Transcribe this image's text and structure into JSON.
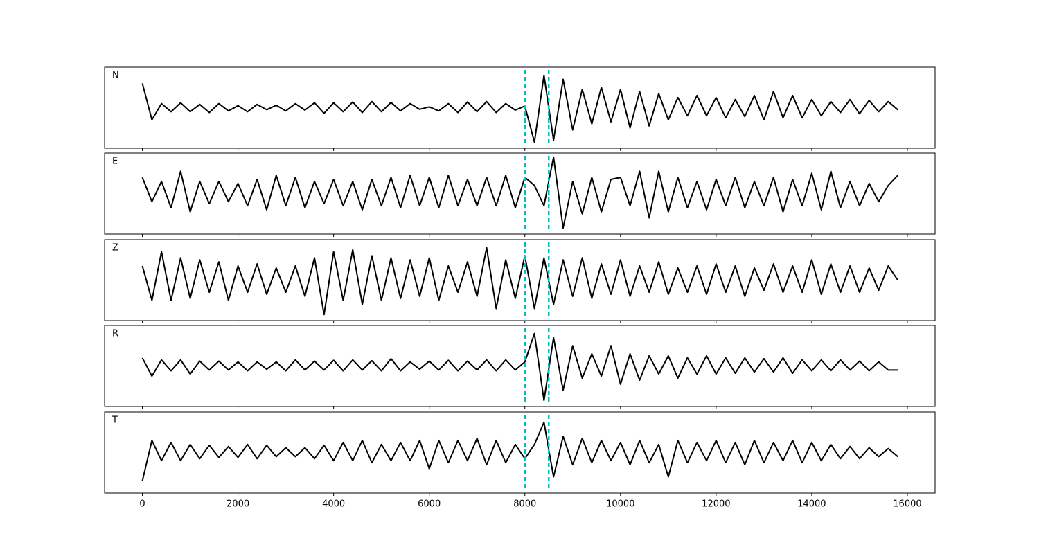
{
  "chart_data": [
    {
      "type": "line",
      "title": "N",
      "color": "#000000",
      "xlim": [
        -790,
        16580
      ],
      "ylim": [
        -1,
        1
      ],
      "vlines": [
        8000,
        8500
      ],
      "vline_color": "#00bfbf",
      "x": [
        0,
        200,
        400,
        600,
        800,
        1000,
        1200,
        1400,
        1600,
        1800,
        2000,
        2200,
        2400,
        2600,
        2800,
        3000,
        3200,
        3400,
        3600,
        3800,
        4000,
        4200,
        4400,
        4600,
        4800,
        5000,
        5200,
        5400,
        5600,
        5800,
        6000,
        6200,
        6400,
        6600,
        6800,
        7000,
        7200,
        7400,
        7600,
        7800,
        8000,
        8200,
        8400,
        8600,
        8800,
        9000,
        9200,
        9400,
        9600,
        9800,
        10000,
        10200,
        10400,
        10600,
        10800,
        11000,
        11200,
        11400,
        11600,
        11800,
        12000,
        12200,
        12400,
        12600,
        12800,
        13000,
        13200,
        13400,
        13600,
        13800,
        14000,
        14200,
        14400,
        14600,
        14800,
        15000,
        15200,
        15400,
        15600,
        15800
      ],
      "values": [
        0.6,
        -0.3,
        0.1,
        -0.1,
        0.12,
        -0.1,
        0.08,
        -0.12,
        0.1,
        -0.08,
        0.05,
        -0.1,
        0.08,
        -0.05,
        0.06,
        -0.08,
        0.1,
        -0.06,
        0.12,
        -0.14,
        0.12,
        -0.1,
        0.14,
        -0.12,
        0.15,
        -0.1,
        0.13,
        -0.08,
        0.1,
        -0.04,
        0.02,
        -0.08,
        0.1,
        -0.12,
        0.14,
        -0.1,
        0.15,
        -0.12,
        0.1,
        -0.06,
        0.04,
        -0.85,
        0.8,
        -0.8,
        0.7,
        -0.55,
        0.45,
        -0.4,
        0.5,
        -0.35,
        0.45,
        -0.5,
        0.4,
        -0.45,
        0.35,
        -0.3,
        0.25,
        -0.2,
        0.3,
        -0.2,
        0.25,
        -0.25,
        0.2,
        -0.22,
        0.3,
        -0.3,
        0.4,
        -0.25,
        0.3,
        -0.25,
        0.2,
        -0.2,
        0.15,
        -0.12,
        0.2,
        -0.15,
        0.18,
        -0.1,
        0.15,
        -0.05
      ]
    },
    {
      "type": "line",
      "title": "E",
      "color": "#000000",
      "xlim": [
        -790,
        16580
      ],
      "ylim": [
        -1,
        1
      ],
      "vlines": [
        8000,
        8500
      ],
      "vline_color": "#00bfbf",
      "x": [
        0,
        200,
        400,
        600,
        800,
        1000,
        1200,
        1400,
        1600,
        1800,
        2000,
        2200,
        2400,
        2600,
        2800,
        3000,
        3200,
        3400,
        3600,
        3800,
        4000,
        4200,
        4400,
        4600,
        4800,
        5000,
        5200,
        5400,
        5600,
        5800,
        6000,
        6200,
        6400,
        6600,
        6800,
        7000,
        7200,
        7400,
        7600,
        7800,
        8000,
        8200,
        8400,
        8600,
        8800,
        9000,
        9200,
        9400,
        9600,
        9800,
        10000,
        10200,
        10400,
        10600,
        10800,
        11000,
        11200,
        11400,
        11600,
        11800,
        12000,
        12200,
        12400,
        12600,
        12800,
        13000,
        13200,
        13400,
        13600,
        13800,
        14000,
        14200,
        14400,
        14600,
        14800,
        15000,
        15200,
        15400,
        15600,
        15800
      ],
      "values": [
        0.4,
        -0.2,
        0.3,
        -0.35,
        0.55,
        -0.45,
        0.3,
        -0.25,
        0.3,
        -0.2,
        0.25,
        -0.3,
        0.35,
        -0.4,
        0.45,
        -0.3,
        0.4,
        -0.35,
        0.3,
        -0.25,
        0.35,
        -0.3,
        0.3,
        -0.4,
        0.35,
        -0.3,
        0.4,
        -0.35,
        0.45,
        -0.3,
        0.4,
        -0.35,
        0.45,
        -0.3,
        0.35,
        -0.3,
        0.4,
        -0.3,
        0.45,
        -0.35,
        0.4,
        0.2,
        -0.3,
        0.9,
        -0.85,
        0.3,
        -0.5,
        0.4,
        -0.45,
        0.35,
        0.4,
        -0.3,
        0.55,
        -0.6,
        0.55,
        -0.45,
        0.4,
        -0.35,
        0.3,
        -0.4,
        0.35,
        -0.3,
        0.4,
        -0.35,
        0.3,
        -0.3,
        0.4,
        -0.45,
        0.35,
        -0.3,
        0.5,
        -0.4,
        0.55,
        -0.35,
        0.3,
        -0.3,
        0.25,
        -0.2,
        0.2,
        0.45
      ]
    },
    {
      "type": "line",
      "title": "Z",
      "color": "#000000",
      "xlim": [
        -790,
        16580
      ],
      "ylim": [
        -1,
        1
      ],
      "vlines": [
        8000,
        8500
      ],
      "vline_color": "#00bfbf",
      "x": [
        0,
        200,
        400,
        600,
        800,
        1000,
        1200,
        1400,
        1600,
        1800,
        2000,
        2200,
        2400,
        2600,
        2800,
        3000,
        3200,
        3400,
        3600,
        3800,
        4000,
        4200,
        4400,
        4600,
        4800,
        5000,
        5200,
        5400,
        5600,
        5800,
        6000,
        6200,
        6400,
        6600,
        6800,
        7000,
        7200,
        7400,
        7600,
        7800,
        8000,
        8200,
        8400,
        8600,
        8800,
        9000,
        9200,
        9400,
        9600,
        9800,
        10000,
        10200,
        10400,
        10600,
        10800,
        11000,
        11200,
        11400,
        11600,
        11800,
        12000,
        12200,
        12400,
        12600,
        12800,
        13000,
        13200,
        13400,
        13600,
        13800,
        14000,
        14200,
        14400,
        14600,
        14800,
        15000,
        15200,
        15400,
        15600,
        15800
      ],
      "values": [
        0.35,
        -0.5,
        0.7,
        -0.5,
        0.55,
        -0.45,
        0.5,
        -0.3,
        0.45,
        -0.5,
        0.35,
        -0.3,
        0.4,
        -0.35,
        0.3,
        -0.3,
        0.35,
        -0.4,
        0.55,
        -0.85,
        0.7,
        -0.5,
        0.75,
        -0.6,
        0.6,
        -0.5,
        0.55,
        -0.45,
        0.5,
        -0.4,
        0.55,
        -0.5,
        0.35,
        -0.3,
        0.45,
        -0.4,
        0.8,
        -0.7,
        0.5,
        -0.45,
        0.6,
        -0.7,
        0.55,
        -0.6,
        0.5,
        -0.4,
        0.55,
        -0.45,
        0.4,
        -0.35,
        0.5,
        -0.4,
        0.35,
        -0.3,
        0.45,
        -0.35,
        0.3,
        -0.3,
        0.35,
        -0.35,
        0.4,
        -0.3,
        0.35,
        -0.4,
        0.3,
        -0.25,
        0.4,
        -0.3,
        0.35,
        -0.3,
        0.5,
        -0.35,
        0.4,
        -0.3,
        0.35,
        -0.3,
        0.3,
        -0.25,
        0.35,
        0.0
      ]
    },
    {
      "type": "line",
      "title": "R",
      "color": "#000000",
      "xlim": [
        -790,
        16580
      ],
      "ylim": [
        -1,
        1
      ],
      "vlines": [
        8000,
        8500
      ],
      "vline_color": "#00bfbf",
      "x": [
        0,
        200,
        400,
        600,
        800,
        1000,
        1200,
        1400,
        1600,
        1800,
        2000,
        2200,
        2400,
        2600,
        2800,
        3000,
        3200,
        3400,
        3600,
        3800,
        4000,
        4200,
        4400,
        4600,
        4800,
        5000,
        5200,
        5400,
        5600,
        5800,
        6000,
        6200,
        6400,
        6600,
        6800,
        7000,
        7200,
        7400,
        7600,
        7800,
        8000,
        8200,
        8400,
        8600,
        8800,
        9000,
        9200,
        9400,
        9600,
        9800,
        10000,
        10200,
        10400,
        10600,
        10800,
        11000,
        11200,
        11400,
        11600,
        11800,
        12000,
        12200,
        12400,
        12600,
        12800,
        13000,
        13200,
        13400,
        13600,
        13800,
        14000,
        14200,
        14400,
        14600,
        14800,
        15000,
        15200,
        15400,
        15600,
        15800
      ],
      "values": [
        0.2,
        -0.25,
        0.15,
        -0.12,
        0.15,
        -0.2,
        0.12,
        -0.1,
        0.12,
        -0.1,
        0.1,
        -0.12,
        0.1,
        -0.08,
        0.1,
        -0.12,
        0.15,
        -0.1,
        0.12,
        -0.1,
        0.14,
        -0.12,
        0.15,
        -0.1,
        0.13,
        -0.12,
        0.18,
        -0.12,
        0.1,
        -0.08,
        0.12,
        -0.1,
        0.14,
        -0.12,
        0.12,
        -0.1,
        0.15,
        -0.12,
        0.15,
        -0.1,
        0.1,
        0.8,
        -0.85,
        0.7,
        -0.6,
        0.5,
        -0.3,
        0.3,
        -0.25,
        0.5,
        -0.45,
        0.3,
        -0.35,
        0.25,
        -0.2,
        0.25,
        -0.3,
        0.2,
        -0.2,
        0.25,
        -0.2,
        0.2,
        -0.18,
        0.2,
        -0.15,
        0.18,
        -0.15,
        0.2,
        -0.18,
        0.15,
        -0.12,
        0.15,
        -0.12,
        0.15,
        -0.1,
        0.12,
        -0.12,
        0.1,
        -0.1,
        -0.1
      ]
    },
    {
      "type": "line",
      "title": "T",
      "color": "#000000",
      "xlim": [
        -790,
        16580
      ],
      "ylim": [
        -1,
        1
      ],
      "vlines": [
        8000,
        8500
      ],
      "vline_color": "#00bfbf",
      "xticks": [
        0,
        2000,
        4000,
        6000,
        8000,
        10000,
        12000,
        14000,
        16000
      ],
      "x": [
        0,
        200,
        400,
        600,
        800,
        1000,
        1200,
        1400,
        1600,
        1800,
        2000,
        2200,
        2400,
        2600,
        2800,
        3000,
        3200,
        3400,
        3600,
        3800,
        4000,
        4200,
        4400,
        4600,
        4800,
        5000,
        5200,
        5400,
        5600,
        5800,
        6000,
        6200,
        6400,
        6600,
        6800,
        7000,
        7200,
        7400,
        7600,
        7800,
        8000,
        8200,
        8400,
        8600,
        8800,
        9000,
        9200,
        9400,
        9600,
        9800,
        10000,
        10200,
        10400,
        10600,
        10800,
        11000,
        11200,
        11400,
        11600,
        11800,
        12000,
        12200,
        12400,
        12600,
        12800,
        13000,
        13200,
        13400,
        13600,
        13800,
        14000,
        14200,
        14400,
        14600,
        14800,
        15000,
        15200,
        15400,
        15600,
        15800
      ],
      "values": [
        -0.7,
        0.3,
        -0.2,
        0.25,
        -0.2,
        0.2,
        -0.15,
        0.18,
        -0.12,
        0.15,
        -0.12,
        0.2,
        -0.15,
        0.18,
        -0.1,
        0.12,
        -0.1,
        0.12,
        -0.15,
        0.18,
        -0.2,
        0.25,
        -0.2,
        0.3,
        -0.25,
        0.2,
        -0.2,
        0.25,
        -0.2,
        0.3,
        -0.4,
        0.3,
        -0.25,
        0.3,
        -0.2,
        0.35,
        -0.3,
        0.3,
        -0.25,
        0.2,
        -0.15,
        0.2,
        0.75,
        -0.6,
        0.4,
        -0.3,
        0.35,
        -0.25,
        0.3,
        -0.2,
        0.25,
        -0.3,
        0.3,
        -0.25,
        0.2,
        -0.6,
        0.3,
        -0.25,
        0.25,
        -0.2,
        0.3,
        -0.25,
        0.25,
        -0.3,
        0.3,
        -0.25,
        0.25,
        -0.2,
        0.3,
        -0.25,
        0.25,
        -0.2,
        0.2,
        -0.15,
        0.15,
        -0.15,
        0.12,
        -0.1,
        0.1,
        -0.1
      ]
    }
  ]
}
